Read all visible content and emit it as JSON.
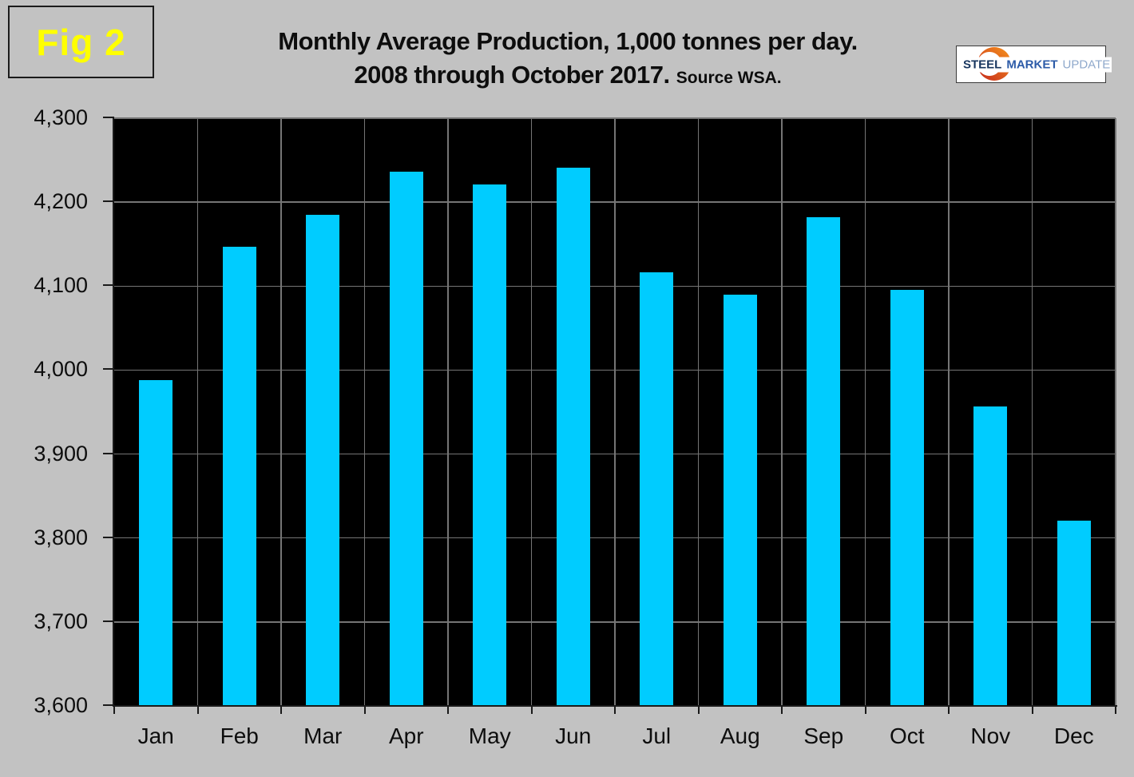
{
  "figure_label": "Fig 2",
  "title": {
    "line1": "Monthly Average Production, 1,000 tonnes per day.",
    "line2": "2008 through October 2017.",
    "source": "Source WSA."
  },
  "logo": {
    "steel": "STEEL",
    "market": "MARKET",
    "update": "UPDATE"
  },
  "colors": {
    "background": "#c2c2c2",
    "plot_background": "#000000",
    "bar": "#00ccff",
    "gridline": "#757575",
    "axis": "#1a1a1a",
    "figure_label_color": "#ffff00",
    "logo_steel": "#17355e",
    "logo_market": "#2c5ba8",
    "logo_update": "#8fa9cc",
    "logo_crescent_start": "#c5281c",
    "logo_crescent_end": "#f7941d"
  },
  "chart_data": {
    "type": "bar",
    "title": "Monthly Average Production, 1,000 tonnes per day. 2008 through October 2017. Source WSA.",
    "categories": [
      "Jan",
      "Feb",
      "Mar",
      "Apr",
      "May",
      "Jun",
      "Jul",
      "Aug",
      "Sep",
      "Oct",
      "Nov",
      "Dec"
    ],
    "values": [
      3988,
      4147,
      4185,
      4236,
      4221,
      4241,
      4116,
      4090,
      4182,
      4096,
      3957,
      3821
    ],
    "series_name": "Monthly average production, 1,000 tonnes per day",
    "xlabel": "",
    "ylabel": "",
    "ylim": [
      3600,
      4300
    ],
    "ytick_step": 100,
    "ytick_labels": [
      "3,600",
      "3,700",
      "3,800",
      "3,900",
      "4,000",
      "4,100",
      "4,200",
      "4,300"
    ],
    "grid": true,
    "legend": false,
    "plot_bg": "#000000",
    "bar_color": "#00ccff"
  }
}
